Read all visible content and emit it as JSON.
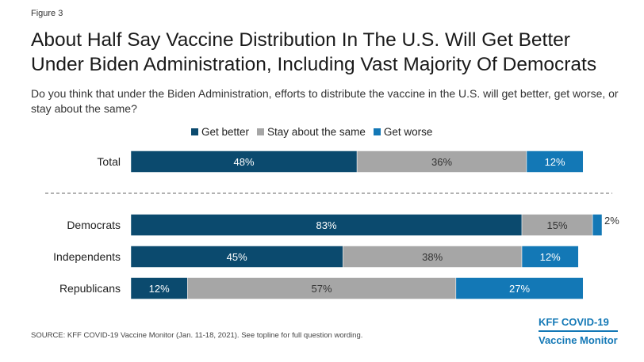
{
  "figure_label": "Figure 3",
  "title_lines": [
    "About Half Say Vaccine Distribution In The U.S. Will Get Better",
    "Under Biden Administration, Including Vast Majority Of Democrats"
  ],
  "subtitle": "Do you think that under the Biden Administration, efforts to distribute the vaccine in the U.S. will get better, get worse, or stay about the same?",
  "source": "SOURCE: KFF COVID-19 Vaccine Monitor (Jan. 11-18, 2021). See topline for full question wording.",
  "brand": {
    "line1": "KFF COVID-19",
    "line2": "Vaccine Monitor"
  },
  "colors": {
    "get_better": "#0b4a6e",
    "stay_same": "#a6a6a6",
    "get_worse": "#1378b6"
  },
  "chart_data": {
    "type": "bar",
    "orientation": "horizontal",
    "stacked": true,
    "xlim": [
      0,
      100
    ],
    "categories": [
      "Total",
      "Democrats",
      "Independents",
      "Republicans"
    ],
    "series": [
      {
        "name": "Get better",
        "values": [
          48,
          83,
          45,
          12
        ],
        "labels": [
          "48%",
          "83%",
          "45%",
          "12%"
        ]
      },
      {
        "name": "Stay about the same",
        "values": [
          36,
          15,
          38,
          57
        ],
        "labels": [
          "36%",
          "15%",
          "38%",
          "57%"
        ]
      },
      {
        "name": "Get worse",
        "values": [
          12,
          2,
          12,
          27
        ],
        "labels": [
          "12%",
          "2%",
          "12%",
          "27%"
        ]
      }
    ],
    "legend_position": "top",
    "separator_after": "Total",
    "grid": false
  }
}
